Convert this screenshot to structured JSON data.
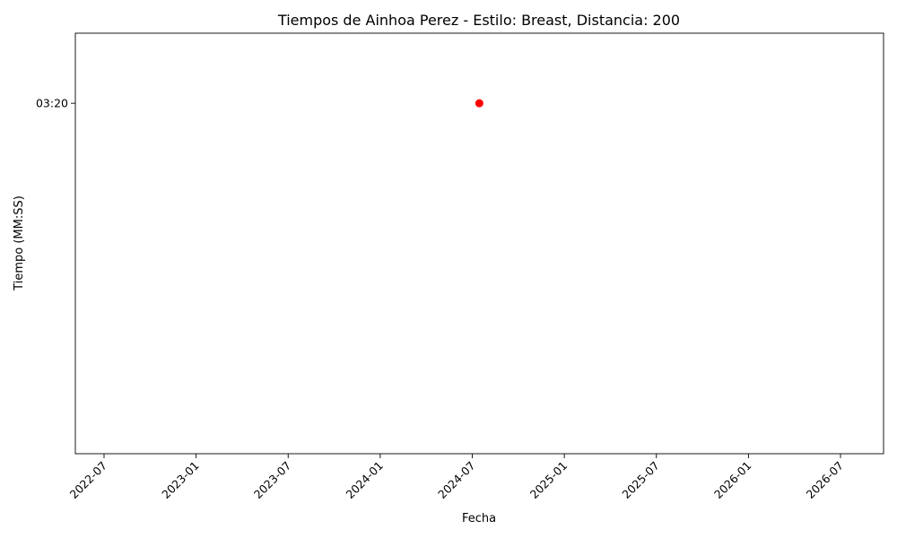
{
  "chart_data": {
    "type": "scatter",
    "title": "Tiempos de Ainhoa Perez - Estilo: Breast, Distancia: 200",
    "xlabel": "Fecha",
    "ylabel": "Tiempo (MM:SS)",
    "x_tick_labels": [
      "2022-07",
      "2023-01",
      "2023-07",
      "2024-01",
      "2024-07",
      "2025-01",
      "2025-07",
      "2026-01",
      "2026-07"
    ],
    "y_tick_labels": [
      "03:20"
    ],
    "points": [
      {
        "x": "2024-07-15",
        "y": "03:20"
      }
    ],
    "marker_color": "#ff0000",
    "grid": false
  }
}
